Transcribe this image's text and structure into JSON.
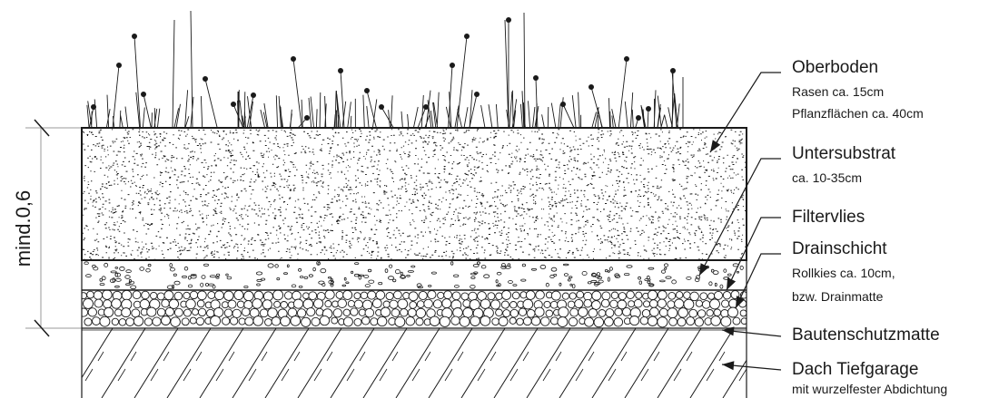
{
  "dimension": {
    "label": "mind.0,6"
  },
  "layers": [
    {
      "id": "oberboden",
      "title": "Oberboden",
      "notes": [
        "Rasen ca. 15cm",
        "Pflanzflächen ca. 40cm"
      ]
    },
    {
      "id": "untersubstrat",
      "title": "Untersubstrat",
      "notes": [
        "ca. 10-35cm"
      ]
    },
    {
      "id": "filtervlies",
      "title": "Filtervlies",
      "notes": []
    },
    {
      "id": "drainschicht",
      "title": "Drainschicht",
      "notes": [
        "Rollkies ca. 10cm,",
        "bzw. Drainmatte"
      ]
    },
    {
      "id": "bautenschutzmatte",
      "title": "Bautenschutzmatte",
      "notes": []
    },
    {
      "id": "dach-tiefgarage",
      "title": "Dach Tiefgarage",
      "notes": [
        "mit wurzelfester Abdichtung"
      ]
    }
  ],
  "colors": {
    "line": "#1a1a1a",
    "background": "#ffffff",
    "dimension_line": "#9a9a9a"
  }
}
